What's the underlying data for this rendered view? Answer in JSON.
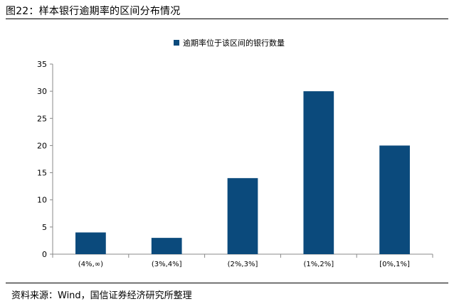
{
  "figure_title": "图22：样本银行逾期率的区间分布情况",
  "source": "资料来源：Wind，国信证券经济研究所整理",
  "colors": {
    "bar": "#0b4a7c",
    "axis": "#888888",
    "text": "#000000"
  },
  "chart_data": {
    "type": "bar",
    "categories": [
      "(4%,∞)",
      "(3%,4%]",
      "(2%,3%]",
      "(1%,2%]",
      "[0%,1%]"
    ],
    "series": [
      {
        "name": "逾期率位于该区间的银行数量",
        "values": [
          4,
          3,
          14,
          30,
          20
        ]
      }
    ],
    "ylim": [
      0,
      35
    ],
    "yticks": [
      0,
      5,
      10,
      15,
      20,
      25,
      30,
      35
    ],
    "grid": false,
    "legend_position": "top-center"
  }
}
